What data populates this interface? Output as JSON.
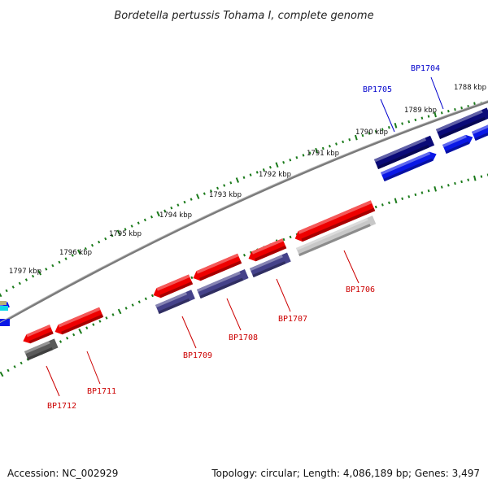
{
  "title": "Bordetella pertussis Tohama I, complete genome",
  "footer": {
    "accession": "Accession: NC_002929",
    "summary": "Topology: circular; Length: 4,086,189 bp; Genes: 3,497"
  },
  "colors": {
    "backbone": "#7a7a7a",
    "tick": "#1a7a1a",
    "red": "#ee0000",
    "navy": "#0a0a78",
    "blue": "#0a18e6",
    "slate": "#45428a",
    "gray": "#c8c8c8",
    "dark": "#5a5a5a",
    "label_red": "#cc0000",
    "label_blue": "#0000cc"
  },
  "scale": {
    "unit": "kbp",
    "labels": [
      "1788 kbp",
      "1789 kbp",
      "1790 kbp",
      "1791 kbp",
      "1792 kbp",
      "1793 kbp",
      "1794 kbp",
      "1795 kbp",
      "1796 kbp",
      "1797 kbp"
    ]
  },
  "genes": [
    {
      "name": "BP1704",
      "strand": "forward",
      "color": "navy"
    },
    {
      "name": "BP1705",
      "strand": "forward",
      "color": "navy"
    },
    {
      "name": "BP1706",
      "strand": "reverse",
      "color": "red"
    },
    {
      "name": "BP1707",
      "strand": "reverse",
      "color": "red"
    },
    {
      "name": "BP1708",
      "strand": "reverse",
      "color": "red"
    },
    {
      "name": "BP1709",
      "strand": "reverse",
      "color": "red"
    },
    {
      "name": "BP1711",
      "strand": "reverse",
      "color": "red"
    },
    {
      "name": "BP1712",
      "strand": "reverse",
      "color": "red"
    }
  ]
}
